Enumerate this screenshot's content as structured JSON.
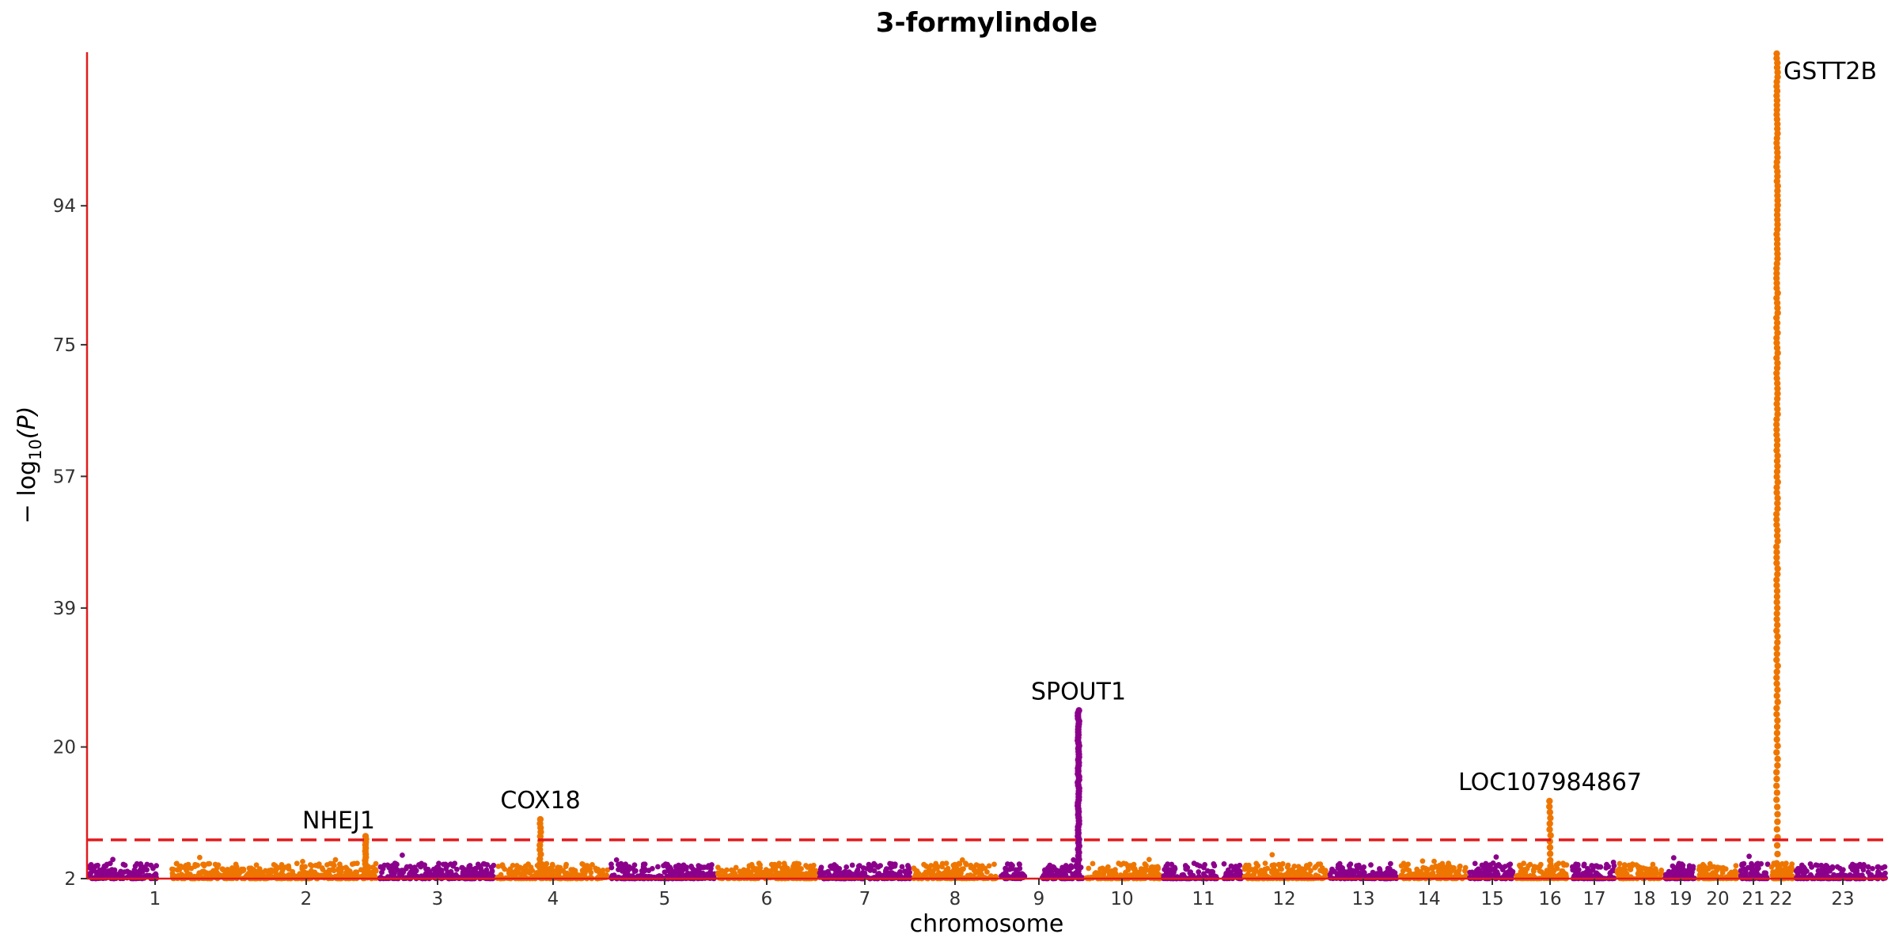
{
  "chart_data": {
    "type": "scatter",
    "subtype": "manhattan",
    "title": "3-formylindole",
    "xlabel": "chromosome",
    "ylabel": "−log10(P)",
    "ylabel_parts": {
      "prefix": "− log",
      "sub": "10",
      "suffix": "(P)"
    },
    "ylim": [
      2,
      115
    ],
    "yticks": [
      2,
      20,
      39,
      57,
      75,
      94
    ],
    "significance_threshold": 7.3,
    "threshold_style": "red dashed",
    "axis_color": "#e31a1c",
    "colors": [
      "#8b008b",
      "#ee7600"
    ],
    "chromosomes": [
      "1",
      "2",
      "3",
      "4",
      "5",
      "6",
      "7",
      "8",
      "9",
      "10",
      "11",
      "12",
      "13",
      "14",
      "15",
      "16",
      "17",
      "18",
      "19",
      "20",
      "21",
      "22",
      "23"
    ],
    "peaks": [
      {
        "gene": "NHEJ1",
        "chromosome": "2",
        "max_neglog10p": 7.8
      },
      {
        "gene": "COX18",
        "chromosome": "4",
        "max_neglog10p": 10.1
      },
      {
        "gene": "SPOUT1",
        "chromosome": "9",
        "max_neglog10p": 25.0
      },
      {
        "gene": "LOC107984867",
        "chromosome": "16",
        "max_neglog10p": 12.6
      },
      {
        "gene": "GSTT2B",
        "chromosome": "22",
        "max_neglog10p": 114.8
      }
    ],
    "grid": false,
    "legend": "none"
  }
}
